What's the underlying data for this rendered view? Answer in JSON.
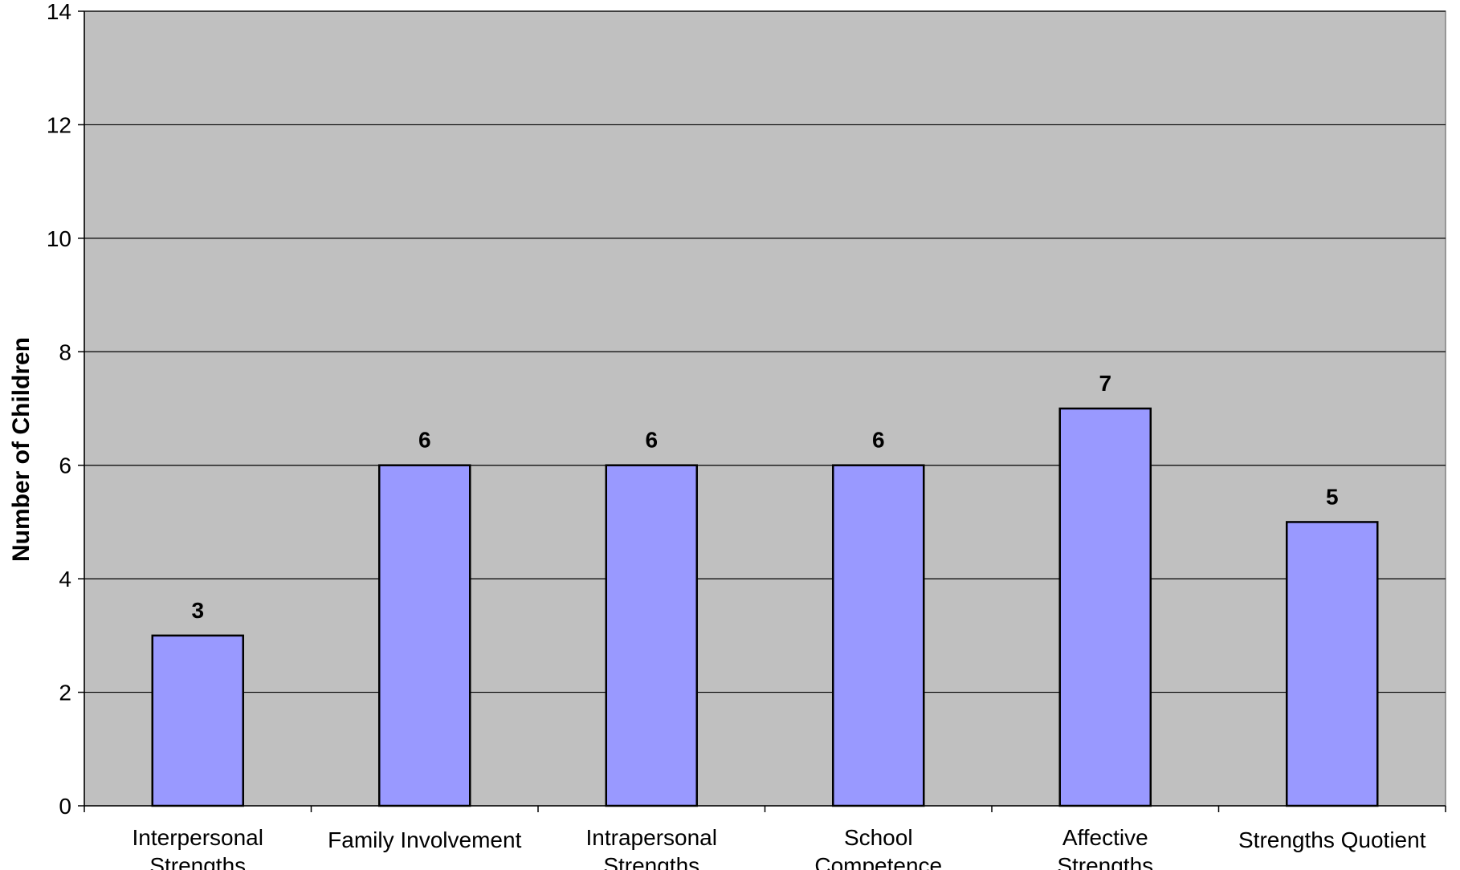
{
  "chart_data": {
    "type": "bar",
    "title": "",
    "xlabel": "",
    "ylabel": "Number of Children",
    "ylim": [
      0,
      14
    ],
    "yticks": [
      0,
      2,
      4,
      6,
      8,
      10,
      12,
      14
    ],
    "grid": true,
    "legend": "none",
    "categories": [
      [
        "Interpersonal",
        "Strengths"
      ],
      [
        "Family Involvement"
      ],
      [
        "Intrapersonal",
        "Strengths"
      ],
      [
        "School",
        "Competence"
      ],
      [
        "Affective",
        "Strengths"
      ],
      [
        "Strengths Quotient"
      ]
    ],
    "values": [
      3,
      6,
      6,
      6,
      7,
      5
    ],
    "colors": {
      "plot_background": "#c0c0c0",
      "bar_fill": "#9999ff",
      "bar_stroke": "#000000",
      "gridline": "#000000"
    }
  }
}
